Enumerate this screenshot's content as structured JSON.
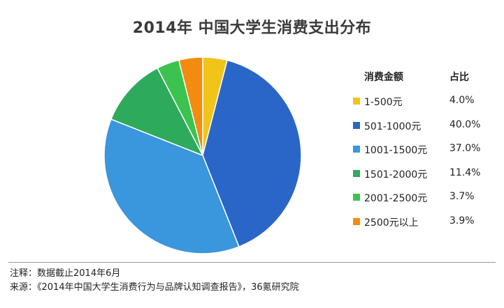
{
  "chart_data": {
    "type": "pie",
    "title": "2014年 中国大学生消费支出分布",
    "legend": {
      "header_label": "消费金额",
      "header_value": "占比",
      "placement": "right"
    },
    "slices": [
      {
        "label": "1-500元",
        "value": 4.0,
        "display": "4.0%",
        "color": "#F0C419"
      },
      {
        "label": "501-1000元",
        "value": 40.0,
        "display": "40.0%",
        "color": "#2966C8"
      },
      {
        "label": "1001-1500元",
        "value": 37.0,
        "display": "37.0%",
        "color": "#3A96DD"
      },
      {
        "label": "1501-2000元",
        "value": 11.4,
        "display": "11.4%",
        "color": "#2EAA5C"
      },
      {
        "label": "2001-2500元",
        "value": 3.7,
        "display": "3.7%",
        "color": "#3CC34F"
      },
      {
        "label": "2500元以上",
        "value": 3.9,
        "display": "3.9%",
        "color": "#F28C0F"
      }
    ]
  },
  "footer": {
    "note": "注释：数据截止2014年6月",
    "source": "来源：《2014年中国大学生消费行为与品牌认知调查报告》，36氪研究院"
  }
}
